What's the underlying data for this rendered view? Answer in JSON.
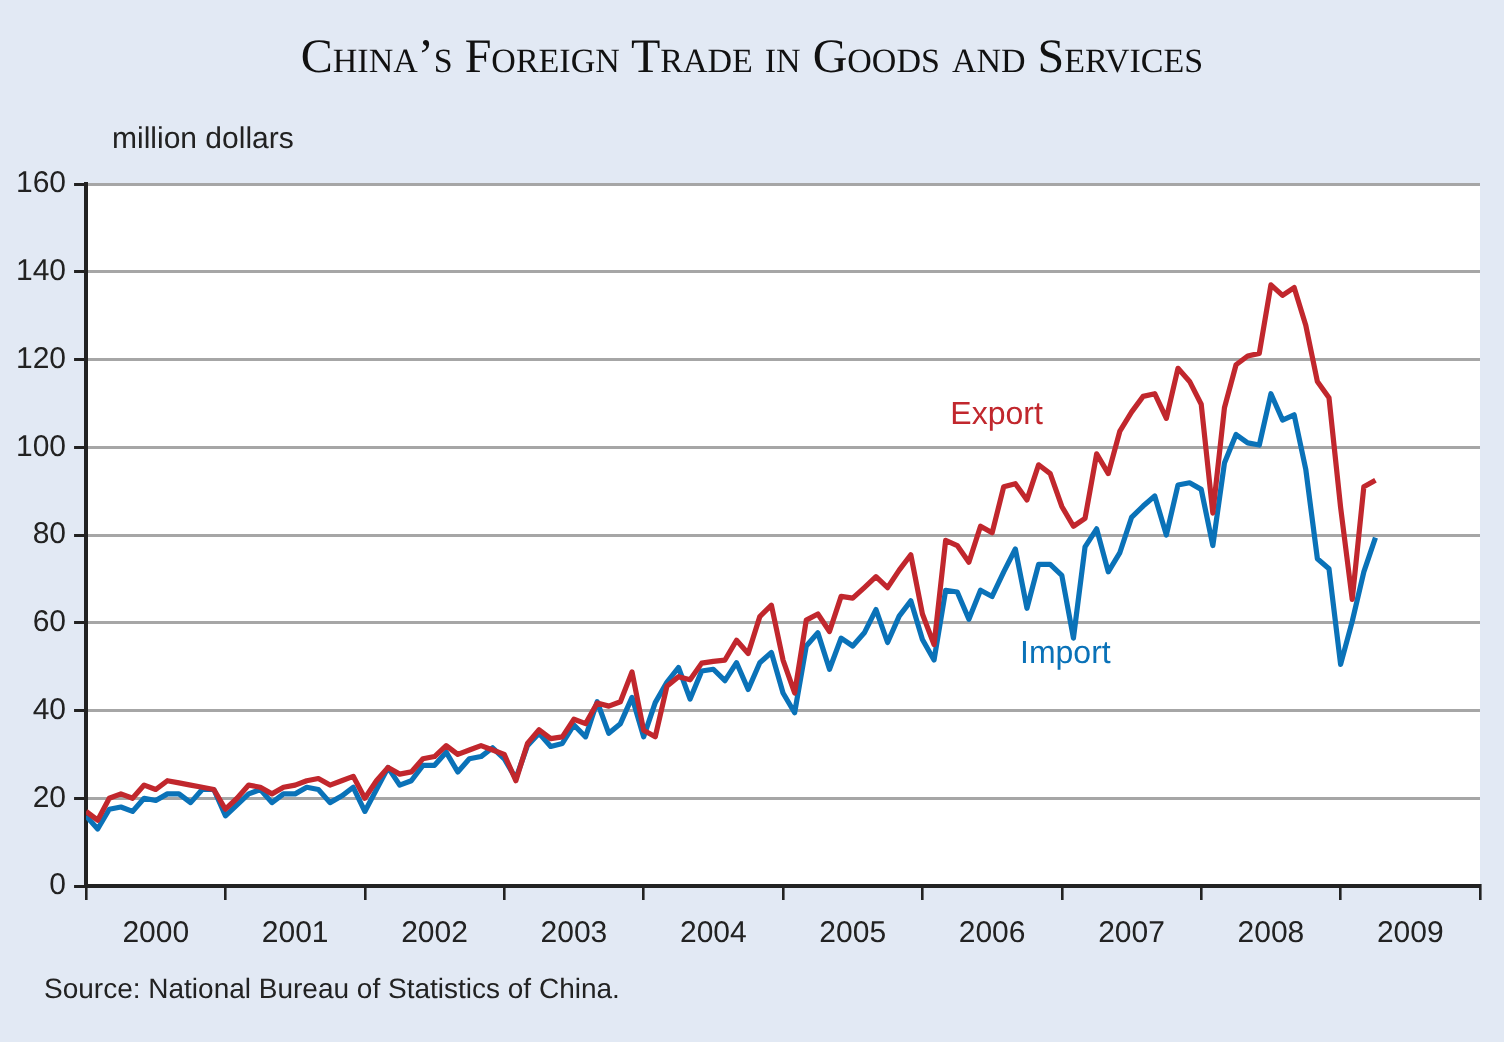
{
  "chart_data": {
    "type": "line",
    "title": "China’s Foreign Trade in Goods and Services",
    "ylabel": "million dollars",
    "x": [
      "2000-01",
      "2000-02",
      "2000-03",
      "2000-04",
      "2000-05",
      "2000-06",
      "2000-07",
      "2000-08",
      "2000-09",
      "2000-10",
      "2000-11",
      "2000-12",
      "2001-01",
      "2001-02",
      "2001-03",
      "2001-04",
      "2001-05",
      "2001-06",
      "2001-07",
      "2001-08",
      "2001-09",
      "2001-10",
      "2001-11",
      "2001-12",
      "2002-01",
      "2002-02",
      "2002-03",
      "2002-04",
      "2002-05",
      "2002-06",
      "2002-07",
      "2002-08",
      "2002-09",
      "2002-10",
      "2002-11",
      "2002-12",
      "2003-01",
      "2003-02",
      "2003-03",
      "2003-04",
      "2003-05",
      "2003-06",
      "2003-07",
      "2003-08",
      "2003-09",
      "2003-10",
      "2003-11",
      "2003-12",
      "2004-01",
      "2004-02",
      "2004-03",
      "2004-04",
      "2004-05",
      "2004-06",
      "2004-07",
      "2004-08",
      "2004-09",
      "2004-10",
      "2004-11",
      "2004-12",
      "2005-01",
      "2005-02",
      "2005-03",
      "2005-04",
      "2005-05",
      "2005-06",
      "2005-07",
      "2005-08",
      "2005-09",
      "2005-10",
      "2005-11",
      "2005-12",
      "2006-01",
      "2006-02",
      "2006-03",
      "2006-04",
      "2006-05",
      "2006-06",
      "2006-07",
      "2006-08",
      "2006-09",
      "2006-10",
      "2006-11",
      "2006-12",
      "2007-01",
      "2007-02",
      "2007-03",
      "2007-04",
      "2007-05",
      "2007-06",
      "2007-07",
      "2007-08",
      "2007-09",
      "2007-10",
      "2007-11",
      "2007-12",
      "2008-01",
      "2008-02",
      "2008-03",
      "2008-04",
      "2008-05",
      "2008-06",
      "2008-07",
      "2008-08",
      "2008-09",
      "2008-10",
      "2008-11",
      "2008-12",
      "2009-01",
      "2009-02",
      "2009-03",
      "2009-04"
    ],
    "series": [
      {
        "name": "Export",
        "color": "#c1272d",
        "values": [
          17,
          15,
          20,
          21,
          20,
          23,
          22,
          24,
          23.5,
          23,
          22.5,
          22,
          17.5,
          20,
          23,
          22.5,
          21,
          22.5,
          23,
          24,
          24.5,
          23,
          24,
          25,
          20,
          24,
          27,
          25.5,
          26,
          29,
          29.5,
          32,
          30,
          31,
          32,
          31,
          30,
          24,
          32.5,
          35.6,
          33.6,
          34,
          38,
          37,
          41.7,
          41,
          42,
          48.8,
          35.5,
          34,
          45.5,
          47.7,
          47,
          50.8,
          51.2,
          51.5,
          56,
          53,
          61.4,
          64,
          51.5,
          44,
          60.6,
          62,
          58,
          66,
          65.6,
          68,
          70.5,
          68,
          72,
          75.5,
          62,
          55,
          78.8,
          77.6,
          73.8,
          82,
          80.5,
          91,
          91.7,
          88,
          96,
          94,
          86.5,
          82,
          83.8,
          98.5,
          94,
          103.7,
          108,
          111.6,
          112.2,
          106.6,
          118,
          115,
          109.8,
          85,
          109,
          118.8,
          120.8,
          121.4,
          137,
          134.6,
          136.4,
          127.8,
          115,
          111.3,
          86.3,
          65.3,
          91,
          92.5
        ]
      },
      {
        "name": "Import",
        "color": "#0a72b8",
        "values": [
          16,
          13,
          17.5,
          18,
          17,
          20,
          19.5,
          21,
          21,
          19,
          22,
          22,
          16,
          18.5,
          21,
          22,
          19,
          21,
          21,
          22.5,
          22,
          19,
          20.5,
          22.5,
          17,
          22,
          27,
          23,
          24,
          27.5,
          27.5,
          30.5,
          26,
          29,
          29.5,
          31.5,
          29,
          24.5,
          32,
          34.8,
          31.8,
          32.5,
          36.7,
          34,
          42,
          34.8,
          37,
          43,
          34,
          41.8,
          46.4,
          49.8,
          42.6,
          49,
          49.4,
          46.8,
          50.9,
          44.8,
          50.9,
          53.2,
          44,
          39.5,
          54.7,
          57.7,
          49.4,
          56.5,
          54.7,
          57.7,
          63,
          55.5,
          61.5,
          65,
          56.2,
          51.5,
          67.4,
          67,
          60.8,
          67.4,
          66,
          71.6,
          76.8,
          63.3,
          73.3,
          73.3,
          70.8,
          56.5,
          77.3,
          81.4,
          71.6,
          76,
          84,
          86.6,
          88.9,
          80,
          91.4,
          91.9,
          90.4,
          77.6,
          96.4,
          102.9,
          101,
          100.5,
          112.2,
          106.2,
          107.4,
          95,
          74.6,
          72.3,
          50.5,
          60.3,
          71.6,
          79.4
        ]
      }
    ],
    "xlim": [
      "2000-01",
      "2010-01"
    ],
    "xticks": [
      {
        "value": "2000-01",
        "label": null
      },
      {
        "value": "2000-07",
        "label": "2000"
      },
      {
        "value": "2001-01",
        "label": null
      },
      {
        "value": "2001-07",
        "label": "2001"
      },
      {
        "value": "2002-01",
        "label": null
      },
      {
        "value": "2002-07",
        "label": "2002"
      },
      {
        "value": "2003-01",
        "label": null
      },
      {
        "value": "2003-07",
        "label": "2003"
      },
      {
        "value": "2004-01",
        "label": null
      },
      {
        "value": "2004-07",
        "label": "2004"
      },
      {
        "value": "2005-01",
        "label": null
      },
      {
        "value": "2005-07",
        "label": "2005"
      },
      {
        "value": "2006-01",
        "label": null
      },
      {
        "value": "2006-07",
        "label": "2006"
      },
      {
        "value": "2007-01",
        "label": null
      },
      {
        "value": "2007-07",
        "label": "2007"
      },
      {
        "value": "2008-01",
        "label": null
      },
      {
        "value": "2008-07",
        "label": "2008"
      },
      {
        "value": "2009-01",
        "label": null
      },
      {
        "value": "2009-07",
        "label": "2009"
      },
      {
        "value": "2010-01",
        "label": null
      }
    ],
    "ylim": [
      0,
      160
    ],
    "yticks": [
      0,
      20,
      40,
      60,
      80,
      100,
      120,
      140,
      160
    ],
    "grid": "y",
    "legend": false,
    "marker": "none",
    "line_style": "solid",
    "annotations": [
      "Source: National Bureau of Statistics of China."
    ]
  }
}
